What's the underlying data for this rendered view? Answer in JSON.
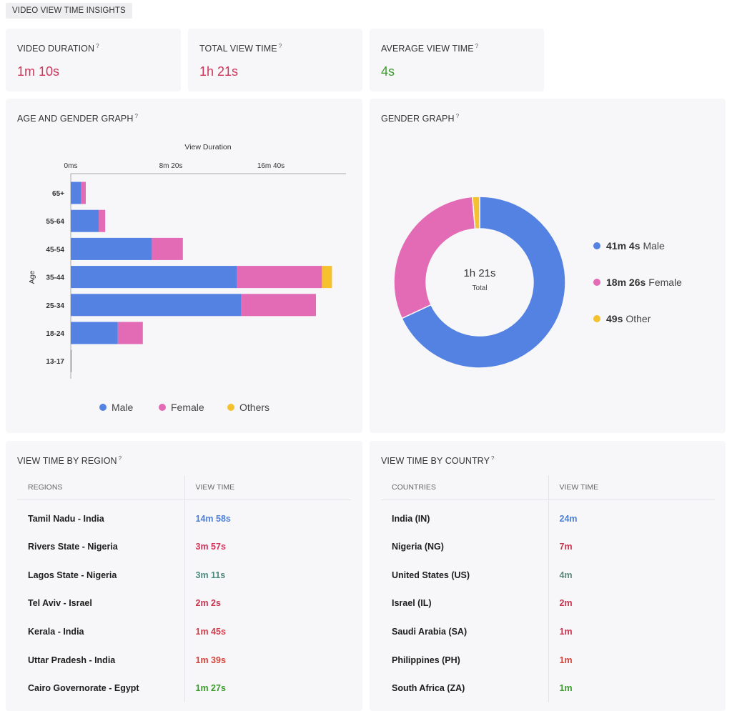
{
  "section_tag": "VIDEO VIEW TIME INSIGHTS",
  "stats": [
    {
      "label": "VIDEO DURATION",
      "value": "1m 10s",
      "color": "#d0345a"
    },
    {
      "label": "TOTAL VIEW TIME",
      "value": "1h 21s",
      "color": "#d0345a"
    },
    {
      "label": "AVERAGE VIEW TIME",
      "value": "4s",
      "color": "#3d9a2f"
    }
  ],
  "help_mark": "?",
  "age_gender": {
    "title": "AGE AND GENDER GRAPH",
    "legend": [
      {
        "label": "Male",
        "color": "#5482e2"
      },
      {
        "label": "Female",
        "color": "#e36ab5"
      },
      {
        "label": "Others",
        "color": "#f5c12e"
      }
    ]
  },
  "gender": {
    "title": "GENDER GRAPH",
    "center_value": "1h 21s",
    "center_label": "Total",
    "legend": [
      {
        "value": "41m 4s",
        "label": "Male",
        "color": "#5482e2"
      },
      {
        "value": "18m 26s",
        "label": "Female",
        "color": "#e36ab5"
      },
      {
        "value": "49s",
        "label": "Other",
        "color": "#f5c12e"
      }
    ]
  },
  "chart_data": [
    {
      "type": "bar",
      "orientation": "horizontal",
      "stacked": true,
      "title": "",
      "xlabel": "View Duration",
      "ylabel": "Age",
      "x_ticks": [
        {
          "label": "0ms",
          "value": 0
        },
        {
          "label": "8m 20s",
          "value": 500
        },
        {
          "label": "16m 40s",
          "value": 1000
        }
      ],
      "xlim": [
        0,
        1375
      ],
      "categories": [
        "65+",
        "55-64",
        "45-54",
        "35-44",
        "25-34",
        "18-24",
        "13-17"
      ],
      "series": [
        {
          "name": "Male",
          "color": "#5482e2",
          "values": [
            50,
            140,
            405,
            830,
            850,
            235,
            3
          ]
        },
        {
          "name": "Female",
          "color": "#e36ab5",
          "values": [
            25,
            32,
            155,
            425,
            375,
            125,
            0
          ]
        },
        {
          "name": "Others",
          "color": "#f5c12e",
          "values": [
            0,
            0,
            0,
            50,
            0,
            0,
            0
          ]
        }
      ],
      "legend_position": "bottom"
    },
    {
      "type": "pie",
      "donut": true,
      "categories": [
        "Male",
        "Female",
        "Other"
      ],
      "values": [
        2464,
        1106,
        49
      ],
      "value_labels": [
        "41m 4s",
        "18m 26s",
        "49s"
      ],
      "colors": [
        "#5482e2",
        "#e36ab5",
        "#f5c12e"
      ],
      "legend_position": "right"
    }
  ],
  "region": {
    "title": "VIEW TIME BY REGION",
    "headers": [
      "REGIONS",
      "VIEW TIME"
    ],
    "rows": [
      {
        "name": "Tamil Nadu - India",
        "value": "14m 58s",
        "color": "#4f7fd6"
      },
      {
        "name": "Rivers State - Nigeria",
        "value": "3m 57s",
        "color": "#d0345a"
      },
      {
        "name": "Lagos State - Nigeria",
        "value": "3m 11s",
        "color": "#4d8a80"
      },
      {
        "name": "Tel Aviv - Israel",
        "value": "2m 2s",
        "color": "#c8354f"
      },
      {
        "name": "Kerala - India",
        "value": "1m 45s",
        "color": "#d43c4a"
      },
      {
        "name": "Uttar Pradesh - India",
        "value": "1m 39s",
        "color": "#d4453c"
      },
      {
        "name": "Cairo Governorate - Egypt",
        "value": "1m 27s",
        "color": "#3d9a2f"
      }
    ]
  },
  "country": {
    "title": "VIEW TIME BY COUNTRY",
    "headers": [
      "COUNTRIES",
      "VIEW TIME"
    ],
    "rows": [
      {
        "name": "India (IN)",
        "value": "24m",
        "color": "#4f7fd6"
      },
      {
        "name": "Nigeria (NG)",
        "value": "7m",
        "color": "#c8354f"
      },
      {
        "name": "United States (US)",
        "value": "4m",
        "color": "#5e8a7e"
      },
      {
        "name": "Israel (IL)",
        "value": "2m",
        "color": "#c8354f"
      },
      {
        "name": "Saudi Arabia (SA)",
        "value": "1m",
        "color": "#c8354f"
      },
      {
        "name": "Philippines (PH)",
        "value": "1m",
        "color": "#d4453c"
      },
      {
        "name": "South Africa (ZA)",
        "value": "1m",
        "color": "#3d9a2f"
      }
    ]
  }
}
